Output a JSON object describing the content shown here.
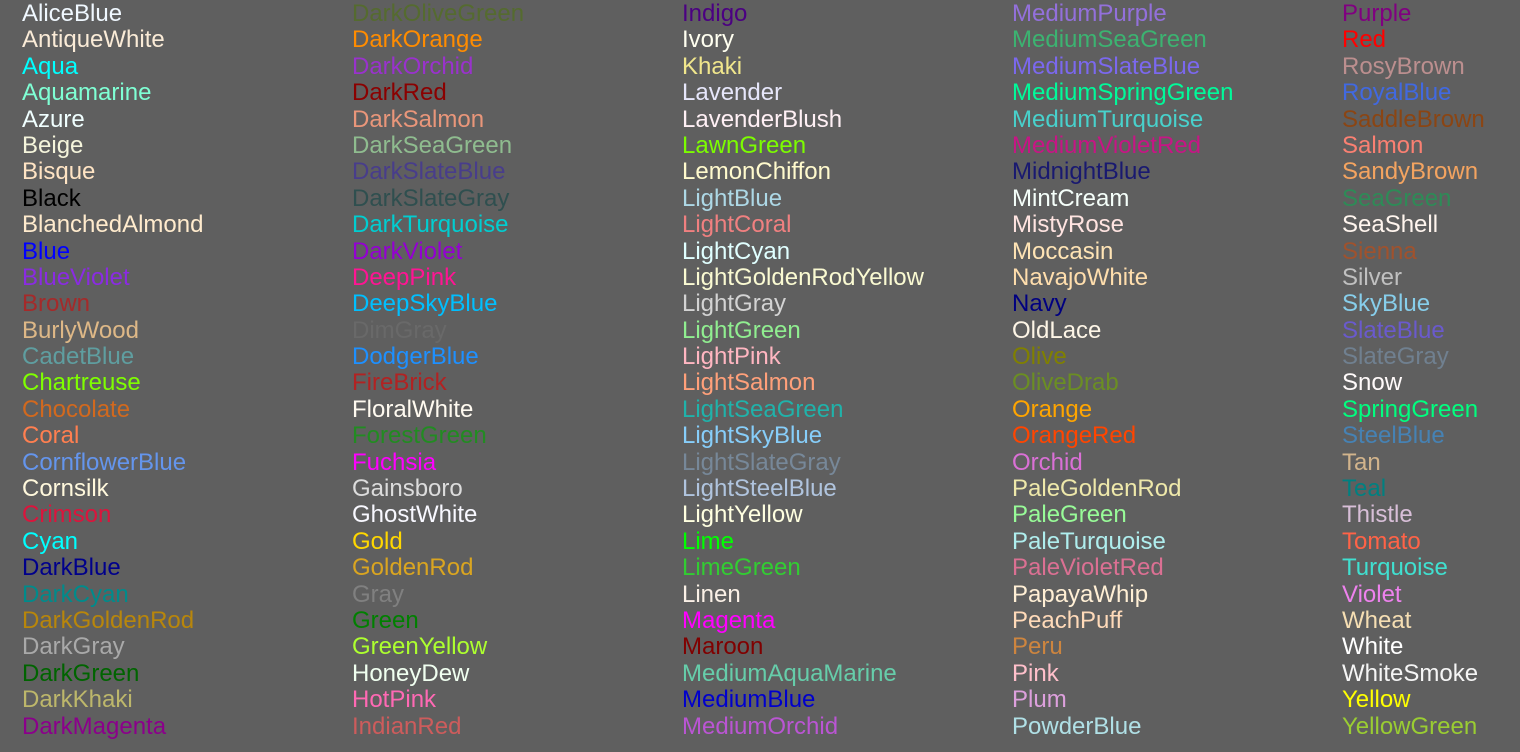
{
  "columns": [
    [
      {
        "name": "AliceBlue",
        "color": "#F0F8FF"
      },
      {
        "name": "AntiqueWhite",
        "color": "#FAEBD7"
      },
      {
        "name": "Aqua",
        "color": "#00FFFF"
      },
      {
        "name": "Aquamarine",
        "color": "#7FFFD4"
      },
      {
        "name": "Azure",
        "color": "#F0FFFF"
      },
      {
        "name": "Beige",
        "color": "#F5F5DC"
      },
      {
        "name": "Bisque",
        "color": "#FFE4C4"
      },
      {
        "name": "Black",
        "color": "#000000"
      },
      {
        "name": "BlanchedAlmond",
        "color": "#FFEBCD"
      },
      {
        "name": "Blue",
        "color": "#0000FF"
      },
      {
        "name": "BlueViolet",
        "color": "#8A2BE2"
      },
      {
        "name": "Brown",
        "color": "#A52A2A"
      },
      {
        "name": "BurlyWood",
        "color": "#DEB887"
      },
      {
        "name": "CadetBlue",
        "color": "#5F9EA0"
      },
      {
        "name": "Chartreuse",
        "color": "#7FFF00"
      },
      {
        "name": "Chocolate",
        "color": "#D2691E"
      },
      {
        "name": "Coral",
        "color": "#FF7F50"
      },
      {
        "name": "CornflowerBlue",
        "color": "#6495ED"
      },
      {
        "name": "Cornsilk",
        "color": "#FFF8DC"
      },
      {
        "name": "Crimson",
        "color": "#DC143C"
      },
      {
        "name": "Cyan",
        "color": "#00FFFF"
      },
      {
        "name": "DarkBlue",
        "color": "#00008B"
      },
      {
        "name": "DarkCyan",
        "color": "#008B8B"
      },
      {
        "name": "DarkGoldenRod",
        "color": "#B8860B"
      },
      {
        "name": "DarkGray",
        "color": "#A9A9A9"
      },
      {
        "name": "DarkGreen",
        "color": "#006400"
      },
      {
        "name": "DarkKhaki",
        "color": "#BDB76B"
      },
      {
        "name": "DarkMagenta",
        "color": "#8B008B"
      }
    ],
    [
      {
        "name": "DarkOliveGreen",
        "color": "#556B2F"
      },
      {
        "name": "DarkOrange",
        "color": "#FF8C00"
      },
      {
        "name": "DarkOrchid",
        "color": "#9932CC"
      },
      {
        "name": "DarkRed",
        "color": "#8B0000"
      },
      {
        "name": "DarkSalmon",
        "color": "#E9967A"
      },
      {
        "name": "DarkSeaGreen",
        "color": "#8FBC8F"
      },
      {
        "name": "DarkSlateBlue",
        "color": "#483D8B"
      },
      {
        "name": "DarkSlateGray",
        "color": "#2F4F4F"
      },
      {
        "name": "DarkTurquoise",
        "color": "#00CED1"
      },
      {
        "name": "DarkViolet",
        "color": "#9400D3"
      },
      {
        "name": "DeepPink",
        "color": "#FF1493"
      },
      {
        "name": "DeepSkyBlue",
        "color": "#00BFFF"
      },
      {
        "name": "DimGray",
        "color": "#696969"
      },
      {
        "name": "DodgerBlue",
        "color": "#1E90FF"
      },
      {
        "name": "FireBrick",
        "color": "#B22222"
      },
      {
        "name": "FloralWhite",
        "color": "#FFFAF0"
      },
      {
        "name": "ForestGreen",
        "color": "#228B22"
      },
      {
        "name": "Fuchsia",
        "color": "#FF00FF"
      },
      {
        "name": "Gainsboro",
        "color": "#DCDCDC"
      },
      {
        "name": "GhostWhite",
        "color": "#F8F8FF"
      },
      {
        "name": "Gold",
        "color": "#FFD700"
      },
      {
        "name": "GoldenRod",
        "color": "#DAA520"
      },
      {
        "name": "Gray",
        "color": "#808080"
      },
      {
        "name": "Green",
        "color": "#008000"
      },
      {
        "name": "GreenYellow",
        "color": "#ADFF2F"
      },
      {
        "name": "HoneyDew",
        "color": "#F0FFF0"
      },
      {
        "name": "HotPink",
        "color": "#FF69B4"
      },
      {
        "name": "IndianRed",
        "color": "#CD5C5C"
      }
    ],
    [
      {
        "name": "Indigo",
        "color": "#4B0082"
      },
      {
        "name": "Ivory",
        "color": "#FFFFF0"
      },
      {
        "name": "Khaki",
        "color": "#F0E68C"
      },
      {
        "name": "Lavender",
        "color": "#E6E6FA"
      },
      {
        "name": "LavenderBlush",
        "color": "#FFF0F5"
      },
      {
        "name": "LawnGreen",
        "color": "#7CFC00"
      },
      {
        "name": "LemonChiffon",
        "color": "#FFFACD"
      },
      {
        "name": "LightBlue",
        "color": "#ADD8E6"
      },
      {
        "name": "LightCoral",
        "color": "#F08080"
      },
      {
        "name": "LightCyan",
        "color": "#E0FFFF"
      },
      {
        "name": "LightGoldenRodYellow",
        "color": "#FAFAD2"
      },
      {
        "name": "LightGray",
        "color": "#D3D3D3"
      },
      {
        "name": "LightGreen",
        "color": "#90EE90"
      },
      {
        "name": "LightPink",
        "color": "#FFB6C1"
      },
      {
        "name": "LightSalmon",
        "color": "#FFA07A"
      },
      {
        "name": "LightSeaGreen",
        "color": "#20B2AA"
      },
      {
        "name": "LightSkyBlue",
        "color": "#87CEFA"
      },
      {
        "name": "LightSlateGray",
        "color": "#778899"
      },
      {
        "name": "LightSteelBlue",
        "color": "#B0C4DE"
      },
      {
        "name": "LightYellow",
        "color": "#FFFFE0"
      },
      {
        "name": "Lime",
        "color": "#00FF00"
      },
      {
        "name": "LimeGreen",
        "color": "#32CD32"
      },
      {
        "name": "Linen",
        "color": "#FAF0E6"
      },
      {
        "name": "Magenta",
        "color": "#FF00FF"
      },
      {
        "name": "Maroon",
        "color": "#800000"
      },
      {
        "name": "MediumAquaMarine",
        "color": "#66CDAA"
      },
      {
        "name": "MediumBlue",
        "color": "#0000CD"
      },
      {
        "name": "MediumOrchid",
        "color": "#BA55D3"
      }
    ],
    [
      {
        "name": "MediumPurple",
        "color": "#9370DB"
      },
      {
        "name": "MediumSeaGreen",
        "color": "#3CB371"
      },
      {
        "name": "MediumSlateBlue",
        "color": "#7B68EE"
      },
      {
        "name": "MediumSpringGreen",
        "color": "#00FA9A"
      },
      {
        "name": "MediumTurquoise",
        "color": "#48D1CC"
      },
      {
        "name": "MediumVioletRed",
        "color": "#C71585"
      },
      {
        "name": "MidnightBlue",
        "color": "#191970"
      },
      {
        "name": "MintCream",
        "color": "#F5FFFA"
      },
      {
        "name": "MistyRose",
        "color": "#FFE4E1"
      },
      {
        "name": "Moccasin",
        "color": "#FFE4B5"
      },
      {
        "name": "NavajoWhite",
        "color": "#FFDEAD"
      },
      {
        "name": "Navy",
        "color": "#000080"
      },
      {
        "name": "OldLace",
        "color": "#FDF5E6"
      },
      {
        "name": "Olive",
        "color": "#808000"
      },
      {
        "name": "OliveDrab",
        "color": "#6B8E23"
      },
      {
        "name": "Orange",
        "color": "#FFA500"
      },
      {
        "name": "OrangeRed",
        "color": "#FF4500"
      },
      {
        "name": "Orchid",
        "color": "#DA70D6"
      },
      {
        "name": "PaleGoldenRod",
        "color": "#EEE8AA"
      },
      {
        "name": "PaleGreen",
        "color": "#98FB98"
      },
      {
        "name": "PaleTurquoise",
        "color": "#AFEEEE"
      },
      {
        "name": "PaleVioletRed",
        "color": "#DB7093"
      },
      {
        "name": "PapayaWhip",
        "color": "#FFEFD5"
      },
      {
        "name": "PeachPuff",
        "color": "#FFDAB9"
      },
      {
        "name": "Peru",
        "color": "#CD853F"
      },
      {
        "name": "Pink",
        "color": "#FFC0CB"
      },
      {
        "name": "Plum",
        "color": "#DDA0DD"
      },
      {
        "name": "PowderBlue",
        "color": "#B0E0E6"
      }
    ],
    [
      {
        "name": "Purple",
        "color": "#800080"
      },
      {
        "name": "Red",
        "color": "#FF0000"
      },
      {
        "name": "RosyBrown",
        "color": "#BC8F8F"
      },
      {
        "name": "RoyalBlue",
        "color": "#4169E1"
      },
      {
        "name": "SaddleBrown",
        "color": "#8B4513"
      },
      {
        "name": "Salmon",
        "color": "#FA8072"
      },
      {
        "name": "SandyBrown",
        "color": "#F4A460"
      },
      {
        "name": "SeaGreen",
        "color": "#2E8B57"
      },
      {
        "name": "SeaShell",
        "color": "#FFF5EE"
      },
      {
        "name": "Sienna",
        "color": "#A0522D"
      },
      {
        "name": "Silver",
        "color": "#C0C0C0"
      },
      {
        "name": "SkyBlue",
        "color": "#87CEEB"
      },
      {
        "name": "SlateBlue",
        "color": "#6A5ACD"
      },
      {
        "name": "SlateGray",
        "color": "#708090"
      },
      {
        "name": "Snow",
        "color": "#FFFAFA"
      },
      {
        "name": "SpringGreen",
        "color": "#00FF7F"
      },
      {
        "name": "SteelBlue",
        "color": "#4682B4"
      },
      {
        "name": "Tan",
        "color": "#D2B48C"
      },
      {
        "name": "Teal",
        "color": "#008080"
      },
      {
        "name": "Thistle",
        "color": "#D8BFD8"
      },
      {
        "name": "Tomato",
        "color": "#FF6347"
      },
      {
        "name": "Turquoise",
        "color": "#40E0D0"
      },
      {
        "name": "Violet",
        "color": "#EE82EE"
      },
      {
        "name": "Wheat",
        "color": "#F5DEB3"
      },
      {
        "name": "White",
        "color": "#FFFFFF"
      },
      {
        "name": "WhiteSmoke",
        "color": "#F5F5F5"
      },
      {
        "name": "Yellow",
        "color": "#FFFF00"
      },
      {
        "name": "YellowGreen",
        "color": "#9ACD32"
      }
    ]
  ]
}
